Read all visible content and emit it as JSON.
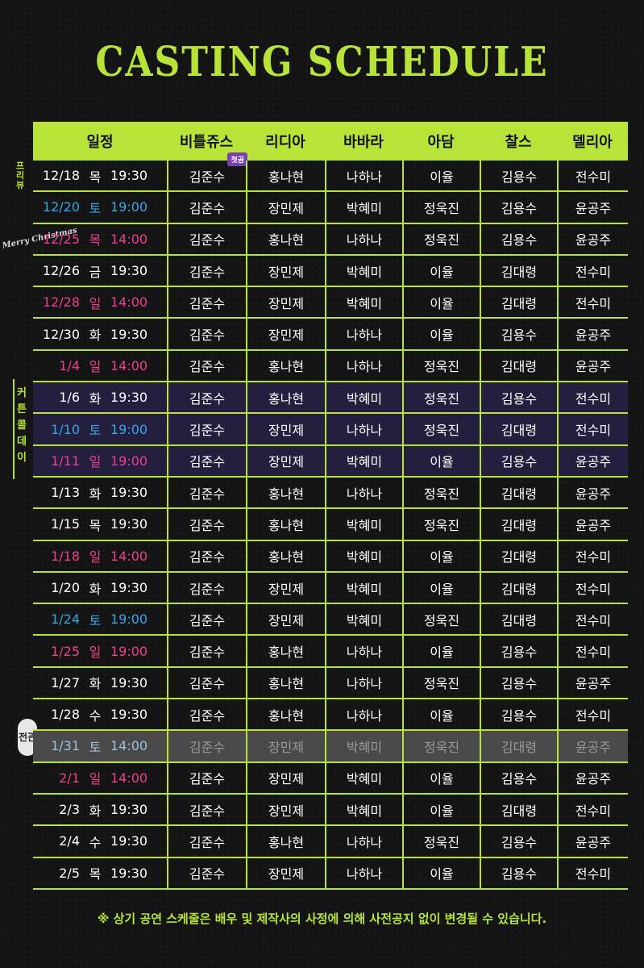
{
  "title": "CASTING SCHEDULE",
  "headers": [
    "일정",
    "비틀쥬스",
    "리디아",
    "바바라",
    "아담",
    "찰스",
    "델리아"
  ],
  "first_badge": "첫공",
  "side_labels": {
    "preview": "프리뷰",
    "christmas": "Merry Christmas",
    "curtain_call": "커튼콜데이",
    "final": "전관"
  },
  "colors": {
    "accent": "#b8e43a",
    "saturday": "#37a7e6",
    "sunday_holiday": "#ef3f8f"
  },
  "rows": [
    {
      "date": "12/18",
      "day": "목",
      "time": "19:30",
      "c": [
        "김준수",
        "홍나현",
        "나하나",
        "이율",
        "김용수",
        "전수미"
      ],
      "color": "",
      "style": ""
    },
    {
      "date": "12/20",
      "day": "토",
      "time": "19:00",
      "c": [
        "김준수",
        "장민제",
        "박혜미",
        "정욱진",
        "김용수",
        "윤공주"
      ],
      "color": "blue",
      "style": ""
    },
    {
      "date": "12/25",
      "day": "목",
      "time": "14:00",
      "c": [
        "김준수",
        "홍나현",
        "나하나",
        "정욱진",
        "김용수",
        "윤공주"
      ],
      "color": "pink",
      "style": ""
    },
    {
      "date": "12/26",
      "day": "금",
      "time": "19:30",
      "c": [
        "김준수",
        "장민제",
        "박혜미",
        "이율",
        "김대령",
        "전수미"
      ],
      "color": "",
      "style": ""
    },
    {
      "date": "12/28",
      "day": "일",
      "time": "14:00",
      "c": [
        "김준수",
        "장민제",
        "박혜미",
        "이율",
        "김대령",
        "전수미"
      ],
      "color": "pink",
      "style": ""
    },
    {
      "date": "12/30",
      "day": "화",
      "time": "19:30",
      "c": [
        "김준수",
        "장민제",
        "나하나",
        "이율",
        "김용수",
        "윤공주"
      ],
      "color": "",
      "style": ""
    },
    {
      "date": "1/4",
      "day": "일",
      "time": "14:00",
      "c": [
        "김준수",
        "홍나현",
        "나하나",
        "정욱진",
        "김대령",
        "윤공주"
      ],
      "color": "pink",
      "style": ""
    },
    {
      "date": "1/6",
      "day": "화",
      "time": "19:30",
      "c": [
        "김준수",
        "홍나현",
        "박혜미",
        "정욱진",
        "김용수",
        "전수미"
      ],
      "color": "",
      "style": "curtain"
    },
    {
      "date": "1/10",
      "day": "토",
      "time": "19:00",
      "c": [
        "김준수",
        "장민제",
        "나하나",
        "정욱진",
        "김대령",
        "전수미"
      ],
      "color": "blue",
      "style": "curtain"
    },
    {
      "date": "1/11",
      "day": "일",
      "time": "19:00",
      "c": [
        "김준수",
        "장민제",
        "박혜미",
        "이율",
        "김용수",
        "윤공주"
      ],
      "color": "pink",
      "style": "curtain"
    },
    {
      "date": "1/13",
      "day": "화",
      "time": "19:30",
      "c": [
        "김준수",
        "홍나현",
        "나하나",
        "정욱진",
        "김대령",
        "윤공주"
      ],
      "color": "",
      "style": ""
    },
    {
      "date": "1/15",
      "day": "목",
      "time": "19:30",
      "c": [
        "김준수",
        "홍나현",
        "박혜미",
        "정욱진",
        "김대령",
        "윤공주"
      ],
      "color": "",
      "style": ""
    },
    {
      "date": "1/18",
      "day": "일",
      "time": "14:00",
      "c": [
        "김준수",
        "홍나현",
        "박혜미",
        "이율",
        "김대령",
        "전수미"
      ],
      "color": "pink",
      "style": ""
    },
    {
      "date": "1/20",
      "day": "화",
      "time": "19:30",
      "c": [
        "김준수",
        "장민제",
        "박혜미",
        "이율",
        "김대령",
        "전수미"
      ],
      "color": "",
      "style": ""
    },
    {
      "date": "1/24",
      "day": "토",
      "time": "19:00",
      "c": [
        "김준수",
        "장민제",
        "박혜미",
        "정욱진",
        "김대령",
        "전수미"
      ],
      "color": "blue",
      "style": ""
    },
    {
      "date": "1/25",
      "day": "일",
      "time": "19:00",
      "c": [
        "김준수",
        "홍나현",
        "나하나",
        "이율",
        "김용수",
        "전수미"
      ],
      "color": "pink",
      "style": ""
    },
    {
      "date": "1/27",
      "day": "화",
      "time": "19:30",
      "c": [
        "김준수",
        "홍나현",
        "나하나",
        "정욱진",
        "김용수",
        "윤공주"
      ],
      "color": "",
      "style": ""
    },
    {
      "date": "1/28",
      "day": "수",
      "time": "19:30",
      "c": [
        "김준수",
        "홍나현",
        "나하나",
        "이율",
        "김용수",
        "전수미"
      ],
      "color": "",
      "style": ""
    },
    {
      "date": "1/31",
      "day": "토",
      "time": "14:00",
      "c": [
        "김준수",
        "장민제",
        "박혜미",
        "정욱진",
        "김대령",
        "윤공주"
      ],
      "color": "",
      "style": "final"
    },
    {
      "date": "2/1",
      "day": "일",
      "time": "14:00",
      "c": [
        "김준수",
        "장민제",
        "박혜미",
        "이율",
        "김용수",
        "윤공주"
      ],
      "color": "pink",
      "style": ""
    },
    {
      "date": "2/3",
      "day": "화",
      "time": "19:30",
      "c": [
        "김준수",
        "장민제",
        "박혜미",
        "이율",
        "김대령",
        "전수미"
      ],
      "color": "",
      "style": ""
    },
    {
      "date": "2/4",
      "day": "수",
      "time": "19:30",
      "c": [
        "김준수",
        "홍나현",
        "나하나",
        "정욱진",
        "김용수",
        "윤공주"
      ],
      "color": "",
      "style": ""
    },
    {
      "date": "2/5",
      "day": "목",
      "time": "19:30",
      "c": [
        "김준수",
        "장민제",
        "나하나",
        "이율",
        "김용수",
        "전수미"
      ],
      "color": "",
      "style": ""
    }
  ],
  "footnote": "※ 상기 공연 스케줄은 배우 및 제작사의 사정에 의해 사전공지 없이 변경될 수 있습니다."
}
